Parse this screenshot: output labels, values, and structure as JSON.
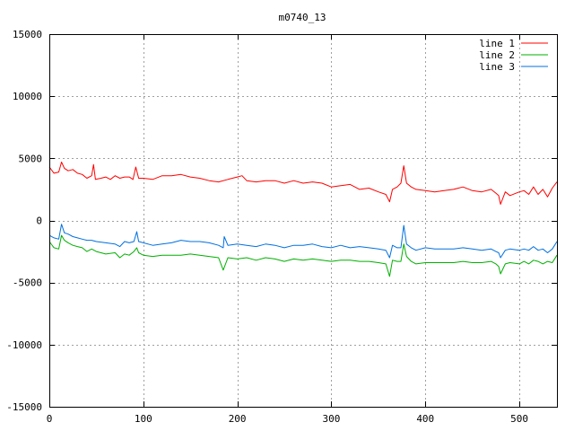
{
  "chart_data": {
    "type": "line",
    "title": "m0740_13",
    "xlabel": "",
    "ylabel": "",
    "xlim": [
      0,
      540
    ],
    "ylim": [
      -15000,
      15000
    ],
    "xticks": [
      0,
      100,
      200,
      300,
      400,
      500
    ],
    "yticks": [
      -15000,
      -10000,
      -5000,
      0,
      5000,
      10000,
      15000
    ],
    "xtick_labels": [
      "0",
      "100",
      "200",
      "300",
      "400",
      "500"
    ],
    "ytick_labels": [
      "-15000",
      "-10000",
      "-5000",
      "0",
      "5000",
      "10000",
      "15000"
    ],
    "grid": true,
    "legend": "top-right",
    "series": [
      {
        "name": "line 1",
        "color": "#ff0000",
        "x": [
          0,
          5,
          10,
          13,
          16,
          20,
          25,
          30,
          35,
          40,
          45,
          47,
          49,
          55,
          60,
          65,
          70,
          75,
          80,
          85,
          89,
          92,
          95,
          100,
          110,
          120,
          130,
          140,
          150,
          160,
          170,
          180,
          190,
          200,
          205,
          210,
          220,
          230,
          240,
          250,
          260,
          270,
          280,
          290,
          300,
          310,
          320,
          330,
          340,
          350,
          358,
          362,
          365,
          370,
          374,
          377,
          380,
          385,
          390,
          400,
          410,
          420,
          430,
          440,
          450,
          460,
          470,
          475,
          478,
          480,
          485,
          490,
          500,
          505,
          510,
          515,
          520,
          525,
          530,
          535,
          540
        ],
        "y": [
          4300,
          3800,
          3900,
          4700,
          4200,
          4000,
          4100,
          3800,
          3700,
          3400,
          3600,
          4500,
          3300,
          3400,
          3500,
          3300,
          3600,
          3400,
          3500,
          3500,
          3300,
          4300,
          3400,
          3400,
          3300,
          3600,
          3600,
          3700,
          3500,
          3400,
          3200,
          3100,
          3300,
          3500,
          3600,
          3200,
          3100,
          3200,
          3200,
          3000,
          3200,
          3000,
          3100,
          3000,
          2700,
          2800,
          2900,
          2500,
          2600,
          2300,
          2100,
          1500,
          2500,
          2700,
          3000,
          4400,
          3000,
          2700,
          2500,
          2400,
          2300,
          2400,
          2500,
          2700,
          2400,
          2300,
          2500,
          2200,
          2000,
          1300,
          2300,
          2000,
          2300,
          2400,
          2100,
          2700,
          2100,
          2500,
          1900,
          2600,
          3100
        ]
      },
      {
        "name": "line 2",
        "color": "#00b000",
        "x": [
          0,
          5,
          10,
          13,
          16,
          20,
          25,
          30,
          35,
          40,
          45,
          50,
          60,
          70,
          75,
          80,
          85,
          90,
          93,
          95,
          100,
          110,
          120,
          130,
          140,
          150,
          160,
          170,
          180,
          185,
          190,
          200,
          210,
          220,
          230,
          240,
          250,
          260,
          270,
          280,
          290,
          300,
          310,
          320,
          330,
          340,
          350,
          358,
          362,
          365,
          370,
          374,
          377,
          380,
          385,
          390,
          400,
          410,
          420,
          430,
          440,
          450,
          460,
          470,
          475,
          478,
          480,
          485,
          490,
          500,
          505,
          510,
          515,
          520,
          525,
          530,
          535,
          540
        ],
        "y": [
          -1700,
          -2200,
          -2300,
          -1200,
          -1600,
          -1800,
          -2000,
          -2100,
          -2200,
          -2500,
          -2300,
          -2500,
          -2700,
          -2600,
          -3000,
          -2700,
          -2800,
          -2500,
          -2200,
          -2600,
          -2800,
          -2900,
          -2800,
          -2800,
          -2800,
          -2700,
          -2800,
          -2900,
          -3000,
          -4000,
          -3000,
          -3100,
          -3000,
          -3200,
          -3000,
          -3100,
          -3300,
          -3100,
          -3200,
          -3100,
          -3200,
          -3300,
          -3200,
          -3200,
          -3300,
          -3300,
          -3400,
          -3500,
          -4500,
          -3200,
          -3300,
          -3300,
          -1900,
          -2900,
          -3300,
          -3500,
          -3400,
          -3400,
          -3400,
          -3400,
          -3300,
          -3400,
          -3400,
          -3300,
          -3500,
          -3700,
          -4300,
          -3500,
          -3400,
          -3500,
          -3300,
          -3500,
          -3200,
          -3300,
          -3500,
          -3300,
          -3400,
          -2800
        ]
      },
      {
        "name": "line 3",
        "color": "#0070e0",
        "x": [
          0,
          5,
          10,
          13,
          16,
          20,
          25,
          30,
          35,
          40,
          45,
          50,
          60,
          70,
          75,
          80,
          85,
          90,
          93,
          95,
          100,
          110,
          120,
          130,
          140,
          150,
          160,
          170,
          180,
          185,
          186,
          190,
          200,
          210,
          220,
          230,
          240,
          250,
          260,
          270,
          280,
          290,
          300,
          310,
          320,
          330,
          340,
          350,
          358,
          362,
          365,
          370,
          374,
          377,
          380,
          385,
          390,
          400,
          410,
          420,
          430,
          440,
          450,
          460,
          470,
          475,
          478,
          480,
          485,
          490,
          500,
          505,
          510,
          515,
          520,
          525,
          530,
          535,
          540
        ],
        "y": [
          -1200,
          -1400,
          -1500,
          -300,
          -1000,
          -1100,
          -1300,
          -1400,
          -1500,
          -1600,
          -1600,
          -1700,
          -1800,
          -1900,
          -2100,
          -1700,
          -1800,
          -1700,
          -900,
          -1700,
          -1800,
          -2000,
          -1900,
          -1800,
          -1600,
          -1700,
          -1700,
          -1800,
          -2000,
          -2200,
          -1300,
          -2000,
          -1900,
          -2000,
          -2100,
          -1900,
          -2000,
          -2200,
          -2000,
          -2000,
          -1900,
          -2100,
          -2200,
          -2000,
          -2200,
          -2100,
          -2200,
          -2300,
          -2400,
          -3000,
          -2000,
          -2200,
          -2200,
          -400,
          -1900,
          -2200,
          -2400,
          -2200,
          -2300,
          -2300,
          -2300,
          -2200,
          -2300,
          -2400,
          -2300,
          -2500,
          -2600,
          -3000,
          -2400,
          -2300,
          -2400,
          -2300,
          -2400,
          -2100,
          -2400,
          -2300,
          -2600,
          -2300,
          -1700
        ]
      }
    ]
  }
}
